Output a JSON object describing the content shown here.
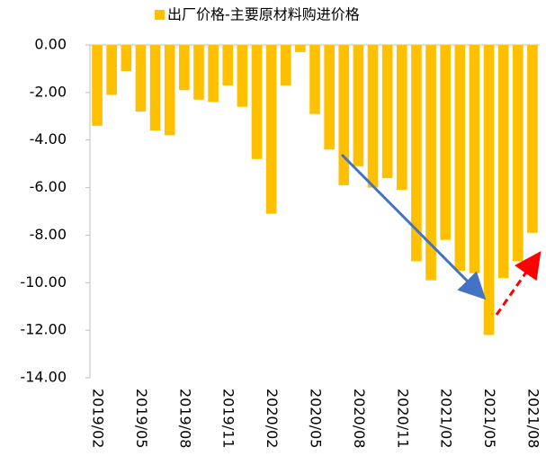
{
  "chart_data": {
    "type": "bar",
    "categories": [
      "2019/02",
      null,
      null,
      "2019/05",
      null,
      null,
      "2019/08",
      null,
      null,
      "2019/11",
      null,
      null,
      "2020/02",
      null,
      null,
      "2020/05",
      null,
      null,
      "2020/08",
      null,
      null,
      "2020/11",
      null,
      null,
      "2021/02",
      null,
      null,
      "2021/05",
      null,
      null,
      "2021/08"
    ],
    "series": [
      {
        "name": "出厂价格-主要原材料购进价格",
        "color": "#ffc000",
        "values": [
          -3.4,
          -2.1,
          -1.1,
          -2.8,
          -3.6,
          -3.8,
          -1.9,
          -2.3,
          -2.4,
          -1.7,
          -2.6,
          -4.8,
          -7.1,
          -1.7,
          -0.3,
          -2.9,
          -4.4,
          -5.9,
          -5.1,
          -6.0,
          -5.6,
          -6.1,
          -9.1,
          -9.9,
          -8.2,
          -9.5,
          -9.6,
          -12.2,
          -9.8,
          -9.1,
          -7.9
        ]
      }
    ],
    "ylim": [
      -14,
      0
    ],
    "yticks": [
      {
        "value": 0,
        "label": "0.00"
      },
      {
        "value": -2,
        "label": "-2.00"
      },
      {
        "value": -4,
        "label": "-4.00"
      },
      {
        "value": -6,
        "label": "-6.00"
      },
      {
        "value": -8,
        "label": "-8.00"
      },
      {
        "value": -10,
        "label": "-10.00"
      },
      {
        "value": -12,
        "label": "-12.00"
      },
      {
        "value": -14,
        "label": "-14.00"
      }
    ],
    "legend": "top"
  }
}
